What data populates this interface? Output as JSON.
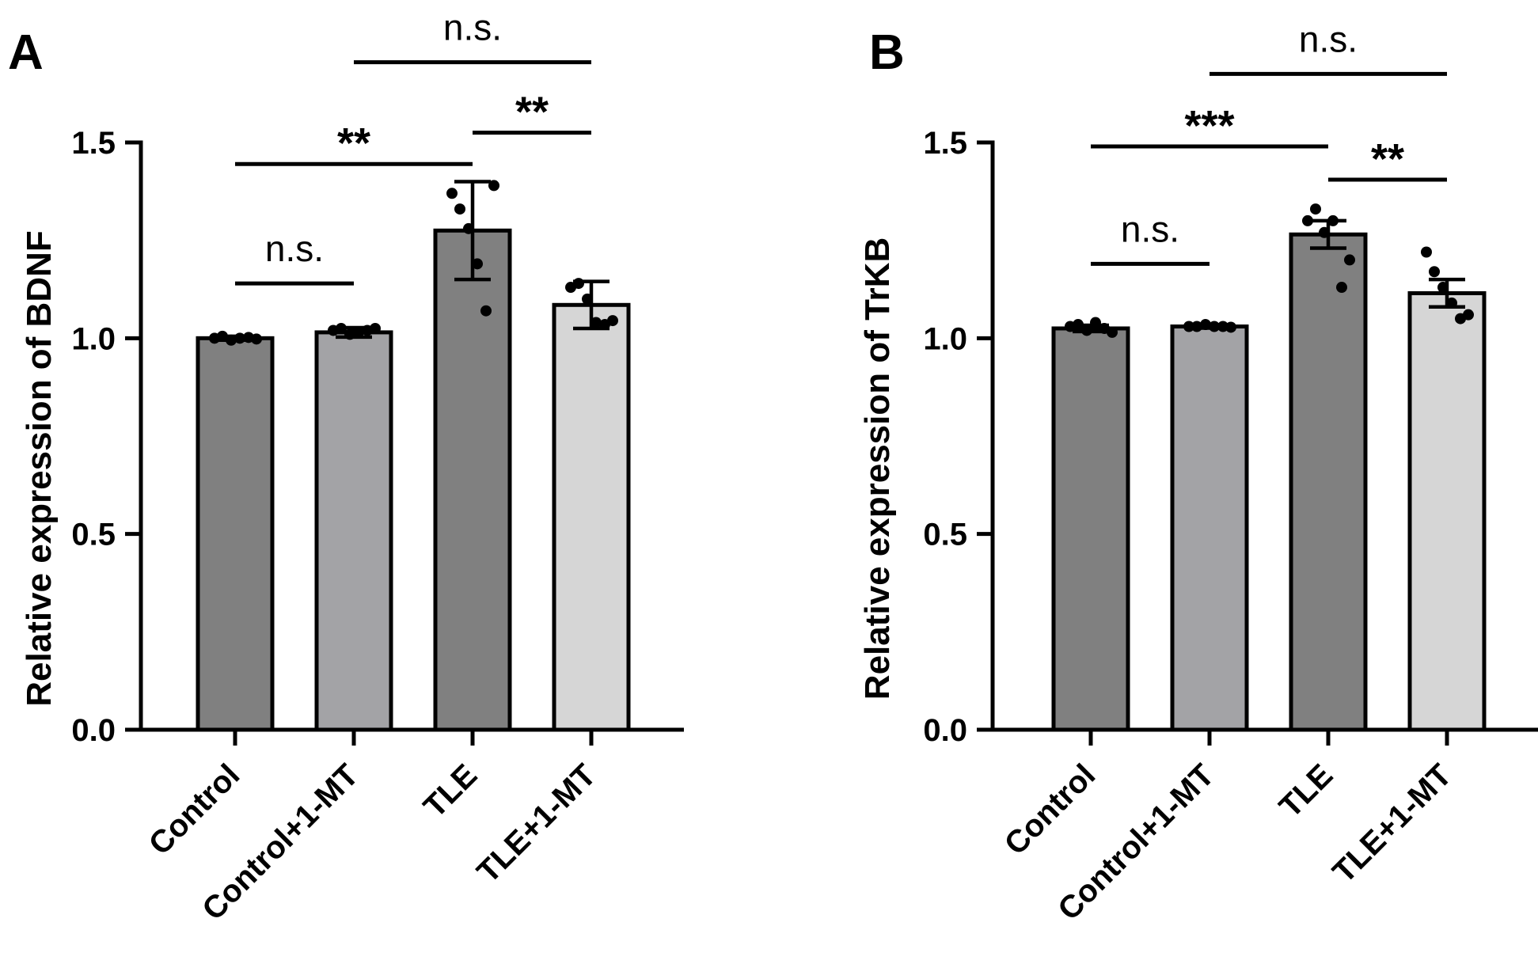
{
  "chart_data": [
    {
      "type": "bar",
      "panel": "A",
      "ylabel": "Relative expression of BDNF",
      "ylim": [
        0,
        1.5
      ],
      "yticks": [
        "0.0",
        "0.5",
        "1.0",
        "1.5"
      ],
      "ytick_values": [
        0,
        0.5,
        1.0,
        1.5
      ],
      "categories": [
        "Control",
        "Control+1-MT",
        "TLE",
        "TLE+1-MT"
      ],
      "values": [
        1.0,
        1.015,
        1.275,
        1.085
      ],
      "errors": [
        0.005,
        0.012,
        0.125,
        0.06
      ],
      "colors": [
        "#808080",
        "#a3a3a6",
        "#808080",
        "#d6d6d6"
      ],
      "points": [
        [
          1.0,
          1.005,
          0.995,
          1.0,
          1.002,
          0.998
        ],
        [
          1.02,
          1.025,
          1.01,
          1.015,
          1.02,
          1.025
        ],
        [
          1.37,
          1.33,
          1.28,
          1.19,
          1.07,
          1.39
        ],
        [
          1.13,
          1.14,
          1.1,
          1.04,
          1.035,
          1.045
        ]
      ],
      "comparisons": [
        {
          "from": 0,
          "to": 1,
          "label": "n.s.",
          "y": 1.14
        },
        {
          "from": 0,
          "to": 2,
          "label": "**",
          "y": 1.445
        },
        {
          "from": 2,
          "to": 3,
          "label": "**",
          "y": 1.525
        },
        {
          "from": 1,
          "to": 3,
          "label": "n.s.",
          "y": 1.705
        }
      ]
    },
    {
      "type": "bar",
      "panel": "B",
      "ylabel": "Relative expression of TrKB",
      "ylim": [
        0,
        1.5
      ],
      "yticks": [
        "0.0",
        "0.5",
        "1.0",
        "1.5"
      ],
      "ytick_values": [
        0,
        0.5,
        1.0,
        1.5
      ],
      "categories": [
        "Control",
        "Control+1-MT",
        "TLE",
        "TLE+1-MT"
      ],
      "values": [
        1.025,
        1.03,
        1.265,
        1.115
      ],
      "errors": [
        0.008,
        0.004,
        0.035,
        0.035
      ],
      "colors": [
        "#808080",
        "#a3a3a6",
        "#808080",
        "#d6d6d6"
      ],
      "points": [
        [
          1.03,
          1.035,
          1.02,
          1.04,
          1.025,
          1.015
        ],
        [
          1.03,
          1.03,
          1.035,
          1.03,
          1.03,
          1.028
        ],
        [
          1.3,
          1.33,
          1.27,
          1.3,
          1.13,
          1.2
        ],
        [
          1.22,
          1.17,
          1.13,
          1.09,
          1.05,
          1.06
        ]
      ],
      "comparisons": [
        {
          "from": 0,
          "to": 1,
          "label": "n.s.",
          "y": 1.19
        },
        {
          "from": 0,
          "to": 2,
          "label": "***",
          "y": 1.49
        },
        {
          "from": 2,
          "to": 3,
          "label": "**",
          "y": 1.405
        },
        {
          "from": 1,
          "to": 3,
          "label": "n.s.",
          "y": 1.675
        }
      ]
    }
  ]
}
